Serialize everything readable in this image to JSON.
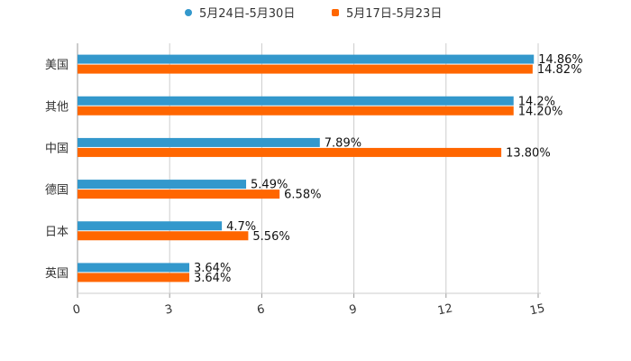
{
  "chart_data": {
    "type": "bar",
    "orientation": "horizontal",
    "categories": [
      "美国",
      "其他",
      "中国",
      "德国",
      "日本",
      "英国"
    ],
    "series": [
      {
        "name": "5月24日-5月30日",
        "color": "#3398cc",
        "values": [
          14.86,
          14.2,
          7.89,
          5.49,
          4.7,
          3.64
        ],
        "labels": [
          "14.86%",
          "14.2%",
          "7.89%",
          "5.49%",
          "4.7%",
          "3.64%"
        ]
      },
      {
        "name": "5月17日-5月23日",
        "color": "#ff6600",
        "values": [
          14.82,
          14.2,
          13.8,
          6.58,
          5.56,
          3.64
        ],
        "labels": [
          "14.82%",
          "14.20%",
          "13.80%",
          "6.58%",
          "5.56%",
          "3.64%"
        ]
      }
    ],
    "xlim": [
      0,
      15
    ],
    "xticks": [
      "0",
      "3",
      "6",
      "9",
      "12",
      "15"
    ],
    "grid": true,
    "legend_position": "top"
  }
}
